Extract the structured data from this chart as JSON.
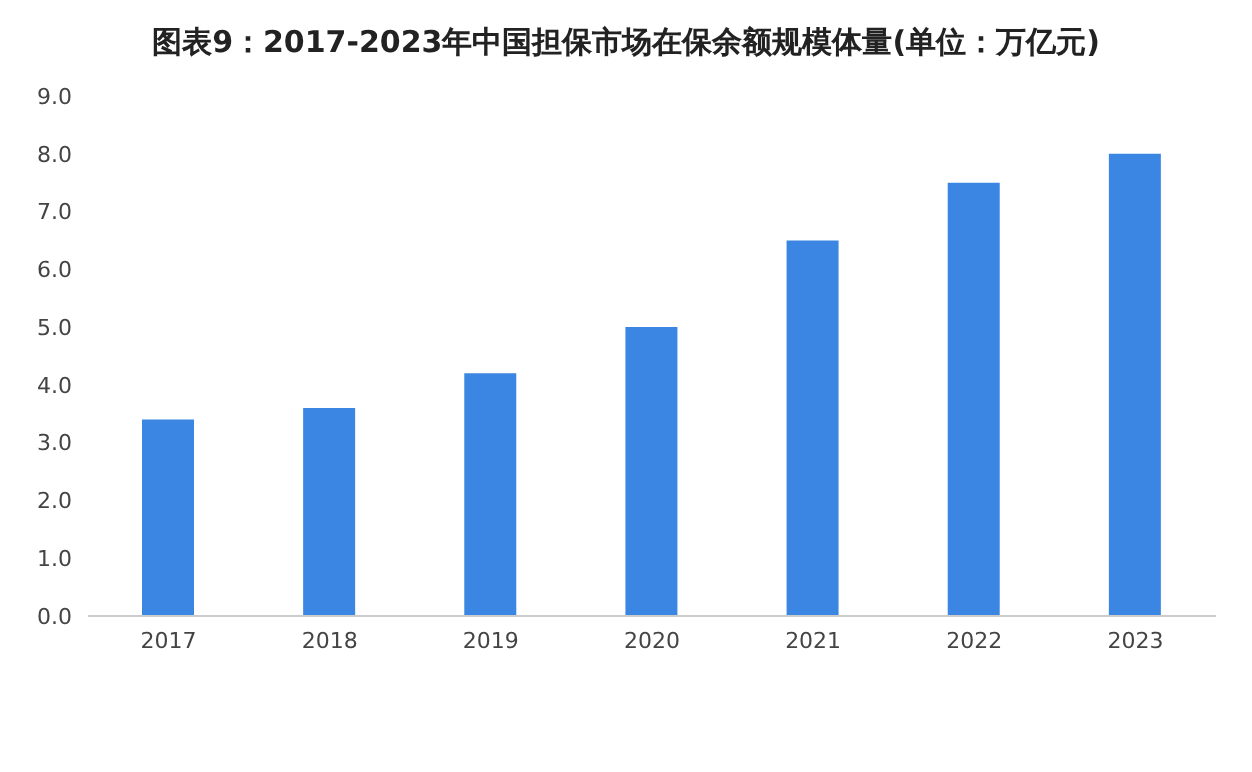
{
  "chart_data": {
    "type": "bar",
    "title": "图表9：2017-2023年中国担保市场在保余额规模体量(单位：万亿元)",
    "categories": [
      "2017",
      "2018",
      "2019",
      "2020",
      "2021",
      "2022",
      "2023"
    ],
    "values": [
      3.4,
      3.6,
      4.2,
      5.0,
      6.5,
      7.5,
      8.0
    ],
    "color": "#3a86e2",
    "ylim": [
      0,
      9
    ],
    "yticks": [
      {
        "value": 0,
        "label": "0.0"
      },
      {
        "value": 1,
        "label": "1.0"
      },
      {
        "value": 2,
        "label": "2.0"
      },
      {
        "value": 3,
        "label": "3.0"
      },
      {
        "value": 4,
        "label": "4.0"
      },
      {
        "value": 5,
        "label": "5.0"
      },
      {
        "value": 6,
        "label": "6.0"
      },
      {
        "value": 7,
        "label": "7.0"
      },
      {
        "value": 8,
        "label": "8.0"
      },
      {
        "value": 9,
        "label": "9.0"
      }
    ],
    "grid": false
  }
}
